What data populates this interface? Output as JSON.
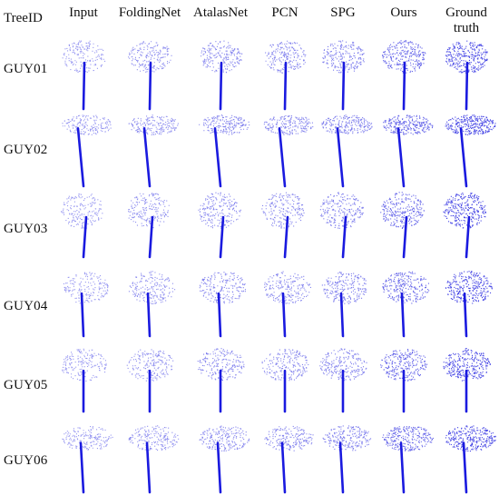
{
  "figure": {
    "headers": [
      "TreeID",
      "Input",
      "FoldingNet",
      "AtalasNet",
      "PCN",
      "SPG",
      "Ours",
      "Ground\ntruth"
    ],
    "row_ids": [
      "GUY01",
      "GUY02",
      "GUY03",
      "GUY04",
      "GUY05",
      "GUY06"
    ],
    "point_color": "#1a1adf",
    "thumbnail_description": "blue point-cloud renderings of tree crowns and trunks"
  }
}
